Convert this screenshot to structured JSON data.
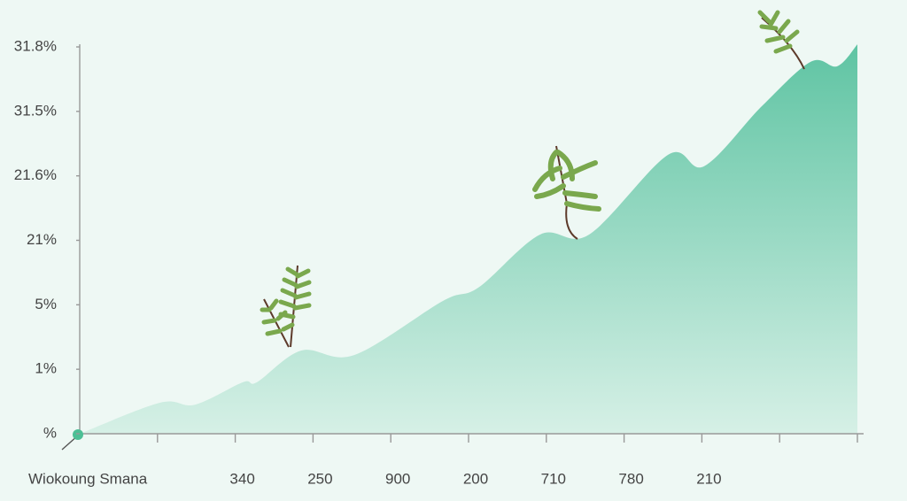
{
  "chart_data": {
    "type": "area",
    "xlabel": "Wiokoung Smana",
    "x": [
      0,
      1.03,
      1.48,
      2.1,
      2.28,
      2.85,
      3.53,
      4.67,
      5.13,
      5.92,
      6.55,
      7.57,
      8.03,
      8.77,
      9.4,
      9.74,
      10
    ],
    "values": [
      0,
      0.48,
      0.45,
      0.8,
      0.8,
      1.29,
      1.22,
      2.06,
      2.27,
      3.09,
      3.09,
      4.33,
      4.15,
      5.08,
      5.77,
      5.7,
      6.04
    ],
    "color": "#5fc4a3",
    "xlim": [
      0,
      10
    ],
    "xticks": [
      {
        "value": 1,
        "label": null
      },
      {
        "value": 2,
        "label": "340"
      },
      {
        "value": 3,
        "label": "250"
      },
      {
        "value": 4,
        "label": "900"
      },
      {
        "value": 5,
        "label": "200"
      },
      {
        "value": 6,
        "label": "710"
      },
      {
        "value": 7,
        "label": "780"
      },
      {
        "value": 8,
        "label": "210"
      },
      {
        "value": 9,
        "label": null
      },
      {
        "value": 10,
        "label": null
      }
    ],
    "ylim": [
      0,
      6.2
    ],
    "yticks": [
      {
        "value": 0,
        "label": "%"
      },
      {
        "value": 1,
        "label": "1%"
      },
      {
        "value": 2,
        "label": "5%"
      },
      {
        "value": 3,
        "label": "21%"
      },
      {
        "value": 4,
        "label": "21.6%"
      },
      {
        "value": 5,
        "label": "31.5%"
      },
      {
        "value": 6,
        "label": "31.8%"
      }
    ]
  }
}
